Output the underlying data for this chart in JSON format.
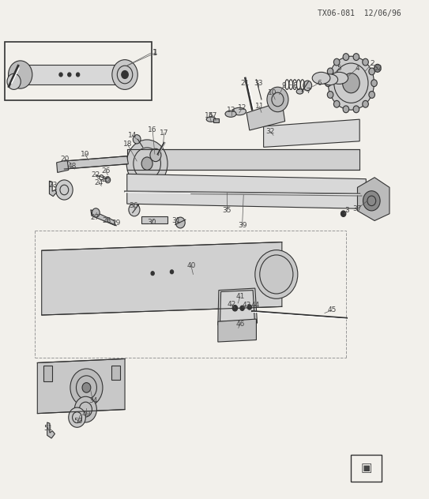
{
  "title": "TX06-081  12/06/96",
  "bg_color": "#f2f0eb",
  "line_color": "#333333",
  "text_color": "#444444",
  "fig_width": 5.43,
  "fig_height": 6.32
}
